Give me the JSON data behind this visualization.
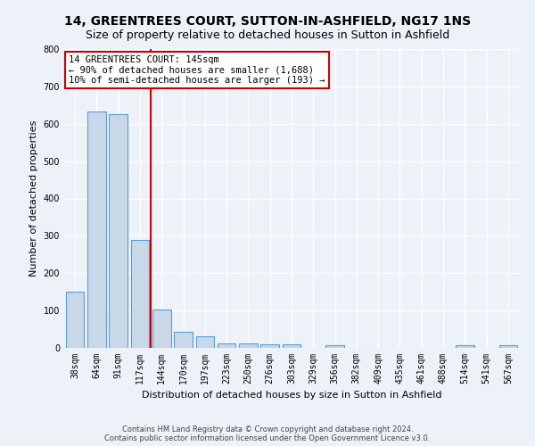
{
  "title": "14, GREENTREES COURT, SUTTON-IN-ASHFIELD, NG17 1NS",
  "subtitle": "Size of property relative to detached houses in Sutton in Ashfield",
  "xlabel": "Distribution of detached houses by size in Sutton in Ashfield",
  "ylabel": "Number of detached properties",
  "categories": [
    "38sqm",
    "64sqm",
    "91sqm",
    "117sqm",
    "144sqm",
    "170sqm",
    "197sqm",
    "223sqm",
    "250sqm",
    "276sqm",
    "303sqm",
    "329sqm",
    "356sqm",
    "382sqm",
    "409sqm",
    "435sqm",
    "461sqm",
    "488sqm",
    "514sqm",
    "541sqm",
    "567sqm"
  ],
  "values": [
    150,
    632,
    625,
    290,
    102,
    42,
    30,
    12,
    12,
    10,
    10,
    0,
    8,
    0,
    0,
    0,
    0,
    0,
    8,
    0,
    8
  ],
  "bar_color": "#c8d8e8",
  "bar_edge_color": "#5b9bd5",
  "vline_index": 3.5,
  "vline_color": "#cc0000",
  "annotation_line1": "14 GREENTREES COURT: 145sqm",
  "annotation_line2": "← 90% of detached houses are smaller (1,688)",
  "annotation_line3": "10% of semi-detached houses are larger (193) →",
  "annotation_box_color": "white",
  "annotation_box_edge_color": "#cc0000",
  "ylim": [
    0,
    800
  ],
  "yticks": [
    0,
    100,
    200,
    300,
    400,
    500,
    600,
    700,
    800
  ],
  "background_color": "#edf2f8",
  "grid_color": "white",
  "title_fontsize": 10,
  "subtitle_fontsize": 9,
  "xlabel_fontsize": 8,
  "ylabel_fontsize": 8,
  "tick_fontsize": 7,
  "annotation_fontsize": 7.5,
  "footnote_fontsize": 6,
  "footnote": "Contains HM Land Registry data © Crown copyright and database right 2024.\nContains public sector information licensed under the Open Government Licence v3.0."
}
